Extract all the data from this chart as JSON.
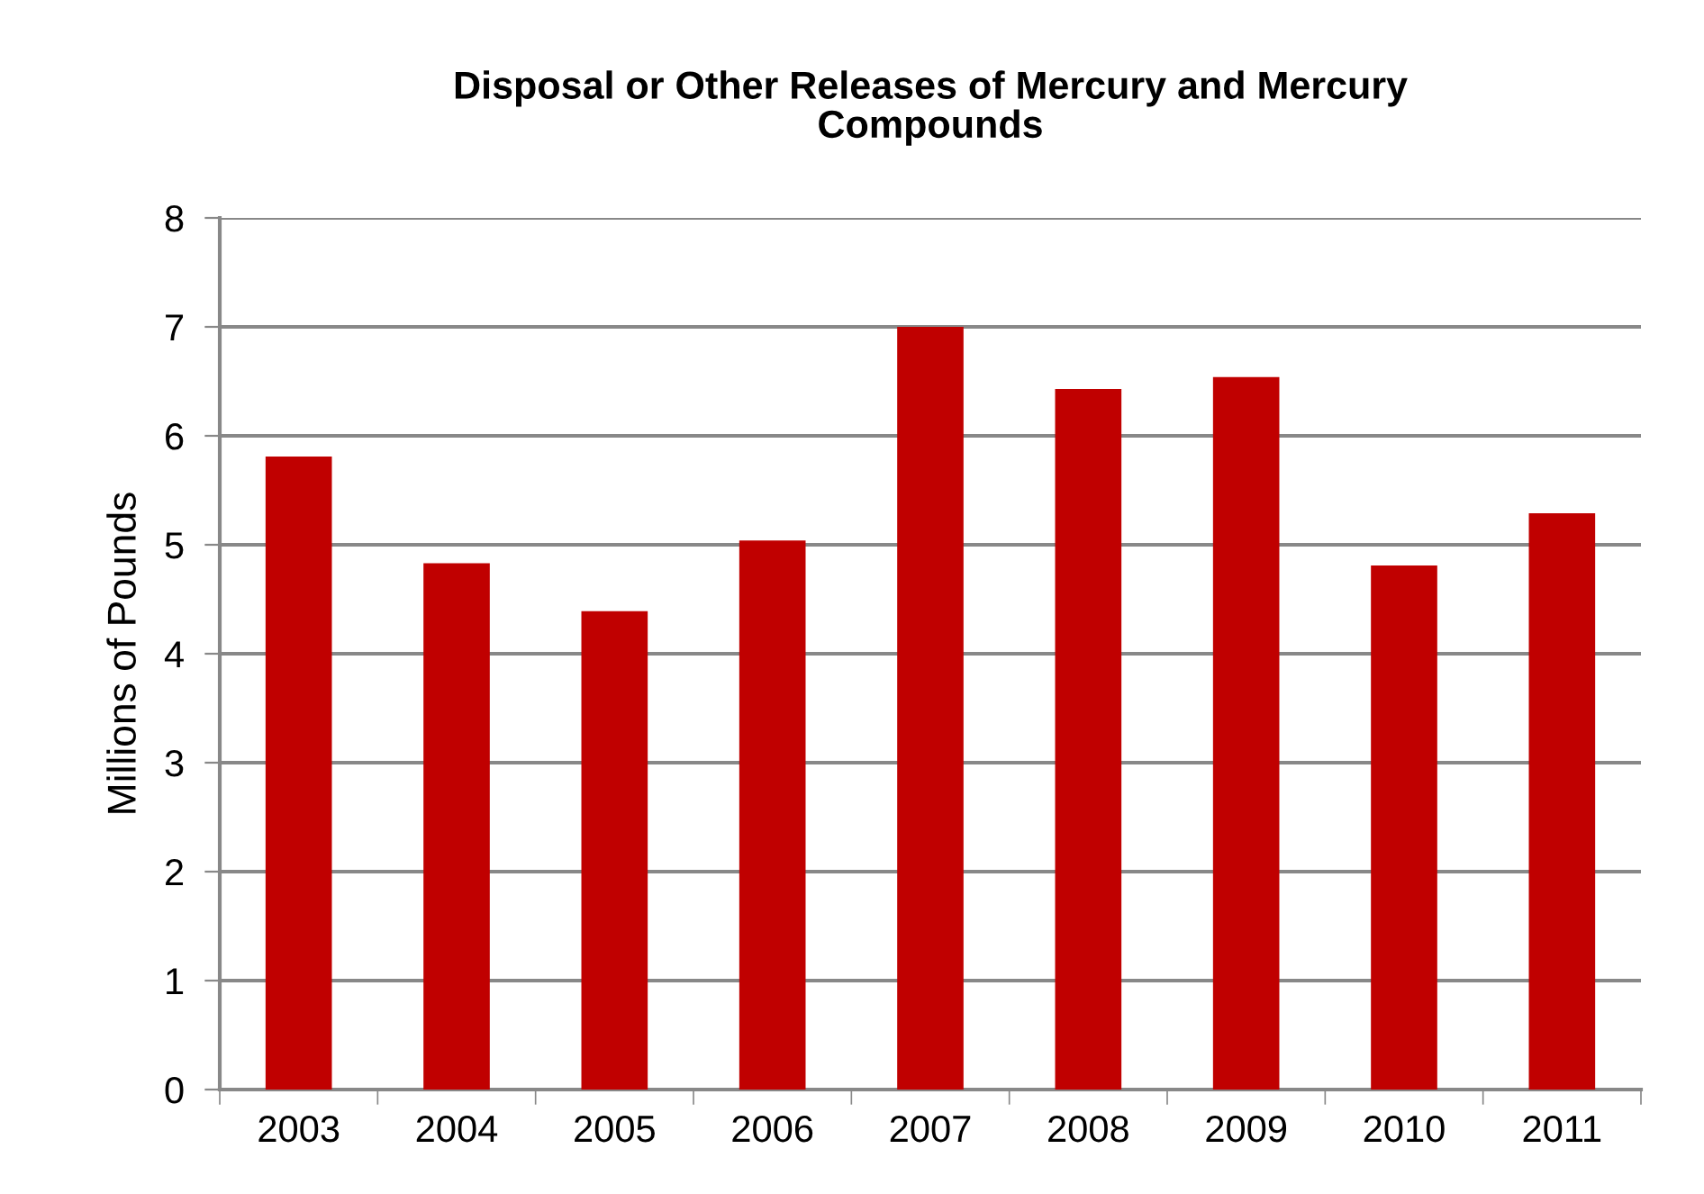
{
  "chart_data": {
    "type": "bar",
    "title": "Disposal or Other Releases of Mercury and Mercury\nCompounds",
    "ylabel": "Millions of Pounds",
    "categories": [
      "2003",
      "2004",
      "2005",
      "2006",
      "2007",
      "2008",
      "2009",
      "2010",
      "2011"
    ],
    "values": [
      5.81,
      4.83,
      4.39,
      5.04,
      7.0,
      6.43,
      6.54,
      4.81,
      5.29
    ],
    "color": "#c00000",
    "ylim": [
      0,
      8
    ],
    "yticks": [
      0,
      1,
      2,
      3,
      4,
      5,
      6,
      7,
      8
    ],
    "grid": "y"
  }
}
